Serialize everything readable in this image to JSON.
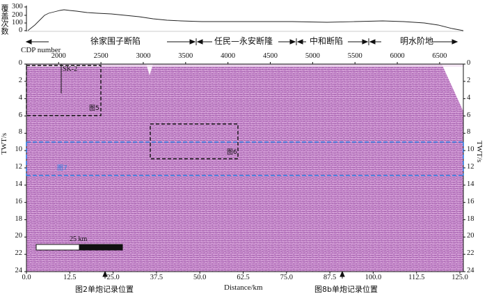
{
  "fold_label": "覆盖次数",
  "fold_ticks": [
    "300",
    "200",
    "100",
    "0"
  ],
  "cdp_label": "CDP  number",
  "cdp_ticks": [
    "2000",
    "2500",
    "3000",
    "3500",
    "4000",
    "4500",
    "5000",
    "5500",
    "6000",
    "6500"
  ],
  "region_labels": [
    "徐家围子断陷",
    "任民—永安断隆",
    "中和断陷",
    "明水阶地"
  ],
  "twt_label": "TWT/s",
  "twt_ticks_left": [
    "0",
    "2",
    "4",
    "6",
    "8",
    "10",
    "12",
    "14",
    "16",
    "18",
    "20",
    "22",
    "24"
  ],
  "twt_ticks_right": [
    "0",
    "2",
    "4",
    "6",
    "8",
    "10",
    "12",
    "14",
    "16",
    "18",
    "20",
    "22",
    "24"
  ],
  "distance_label": "Distance/km",
  "distance_ticks": [
    "0.0",
    "12.5",
    "25.0",
    "37.5",
    "50.0",
    "62.5",
    "75.0",
    "87.5",
    "100.0",
    "112.5",
    "125.0"
  ],
  "well_label": "SK-2",
  "box_labels": {
    "fig5": "图5",
    "fig6": "图6",
    "fig7": "图7"
  },
  "scale_bar_label": "25 km",
  "shot_labels": [
    "图2单炮记录位置",
    "图8b单炮记录位置"
  ],
  "colors": {
    "seismic_base": "#c98fcf",
    "seismic_dark": "#7a2f86",
    "seismic_light": "#f2c9f0",
    "box": "#111111",
    "box_blue": "#2a7de1"
  }
}
